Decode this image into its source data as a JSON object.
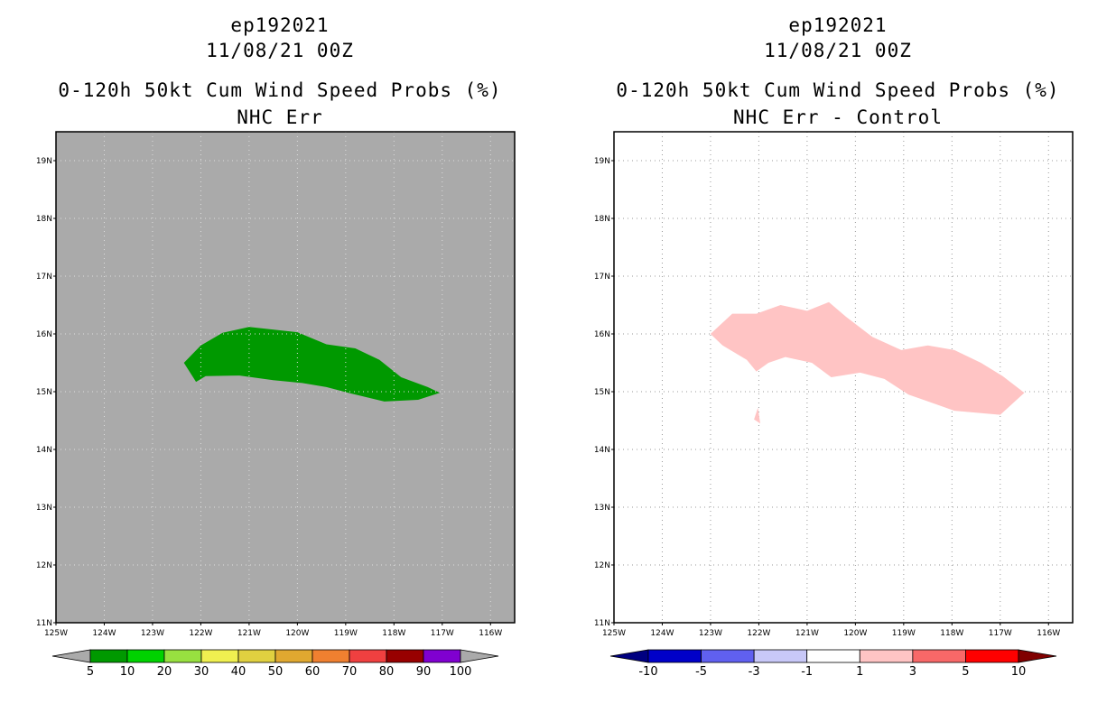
{
  "chart_data": [
    {
      "type": "heatmap",
      "storm_id": "ep192021",
      "date": "11/08/21 00Z",
      "title": "0-120h 50kt Cum Wind Speed Probs (%)",
      "subtitle": "NHC Err",
      "x_ticks": [
        "125W",
        "124W",
        "123W",
        "122W",
        "121W",
        "120W",
        "119W",
        "118W",
        "117W",
        "116W"
      ],
      "y_ticks": [
        "11N",
        "12N",
        "13N",
        "14N",
        "15N",
        "16N",
        "17N",
        "18N",
        "19N"
      ],
      "lon_range": [
        -125,
        -115.5
      ],
      "lat_range": [
        11,
        19.5
      ],
      "background_color": "#aaaaaa",
      "grid_color": "#dddddd",
      "legend_labels": [
        "5",
        "10",
        "20",
        "30",
        "40",
        "50",
        "60",
        "70",
        "80",
        "90",
        "100"
      ],
      "legend_colors": [
        "#009900",
        "#00d200",
        "#98e040",
        "#f0f050",
        "#e0d040",
        "#e0a830",
        "#f08030",
        "#f04040",
        "#980000",
        "#8000d0"
      ],
      "legend_under_color": "#aaaaaa",
      "legend_over_color": "#aaaaaa",
      "regions": [
        {
          "category": "5-10%",
          "color": "#009900",
          "points": [
            [
              -122.35,
              15.5
            ],
            [
              -122.0,
              15.8
            ],
            [
              -121.55,
              16.02
            ],
            [
              -121.0,
              16.12
            ],
            [
              -120.0,
              16.03
            ],
            [
              -119.4,
              15.82
            ],
            [
              -118.8,
              15.75
            ],
            [
              -118.3,
              15.55
            ],
            [
              -117.85,
              15.25
            ],
            [
              -117.3,
              15.08
            ],
            [
              -117.05,
              14.98
            ],
            [
              -117.5,
              14.86
            ],
            [
              -118.2,
              14.83
            ],
            [
              -118.9,
              14.97
            ],
            [
              -119.4,
              15.08
            ],
            [
              -119.9,
              15.15
            ],
            [
              -120.5,
              15.2
            ],
            [
              -121.2,
              15.28
            ],
            [
              -121.9,
              15.27
            ],
            [
              -122.1,
              15.17
            ]
          ]
        }
      ]
    },
    {
      "type": "heatmap",
      "storm_id": "ep192021",
      "date": "11/08/21 00Z",
      "title": "0-120h 50kt Cum Wind Speed Probs (%)",
      "subtitle": "NHC Err - Control",
      "x_ticks": [
        "125W",
        "124W",
        "123W",
        "122W",
        "121W",
        "120W",
        "119W",
        "118W",
        "117W",
        "116W"
      ],
      "y_ticks": [
        "11N",
        "12N",
        "13N",
        "14N",
        "15N",
        "16N",
        "17N",
        "18N",
        "19N"
      ],
      "lon_range": [
        -125,
        -115.5
      ],
      "lat_range": [
        11,
        19.5
      ],
      "background_color": "#ffffff",
      "grid_color": "#999999",
      "legend_labels": [
        "-10",
        "-5",
        "-3",
        "-1",
        "1",
        "3",
        "5",
        "10"
      ],
      "legend_colors": [
        "#0000c8",
        "#6060f0",
        "#c8c8f8",
        "#ffffff",
        "#ffc4c4",
        "#f86868",
        "#ff0000"
      ],
      "legend_under_color": "#000080",
      "legend_over_color": "#800000",
      "regions": [
        {
          "category": "1-3",
          "color": "#ffc4c4",
          "points": [
            [
              -123.0,
              16.0
            ],
            [
              -122.55,
              16.35
            ],
            [
              -122.05,
              16.35
            ],
            [
              -121.55,
              16.5
            ],
            [
              -121.0,
              16.4
            ],
            [
              -120.55,
              16.55
            ],
            [
              -120.2,
              16.3
            ],
            [
              -119.65,
              15.95
            ],
            [
              -119.05,
              15.72
            ],
            [
              -118.5,
              15.8
            ],
            [
              -117.95,
              15.72
            ],
            [
              -117.4,
              15.5
            ],
            [
              -116.95,
              15.27
            ],
            [
              -116.5,
              14.98
            ],
            [
              -117.0,
              14.6
            ],
            [
              -117.95,
              14.67
            ],
            [
              -118.9,
              14.95
            ],
            [
              -119.4,
              15.22
            ],
            [
              -119.9,
              15.33
            ],
            [
              -120.5,
              15.25
            ],
            [
              -120.9,
              15.5
            ],
            [
              -121.45,
              15.6
            ],
            [
              -121.8,
              15.5
            ],
            [
              -122.05,
              15.35
            ],
            [
              -122.25,
              15.55
            ],
            [
              -122.75,
              15.8
            ]
          ]
        },
        {
          "category": "1-3",
          "color": "#ffc4c4",
          "points": [
            [
              -122.02,
              14.72
            ],
            [
              -121.97,
              14.45
            ],
            [
              -122.1,
              14.52
            ]
          ]
        }
      ]
    }
  ]
}
